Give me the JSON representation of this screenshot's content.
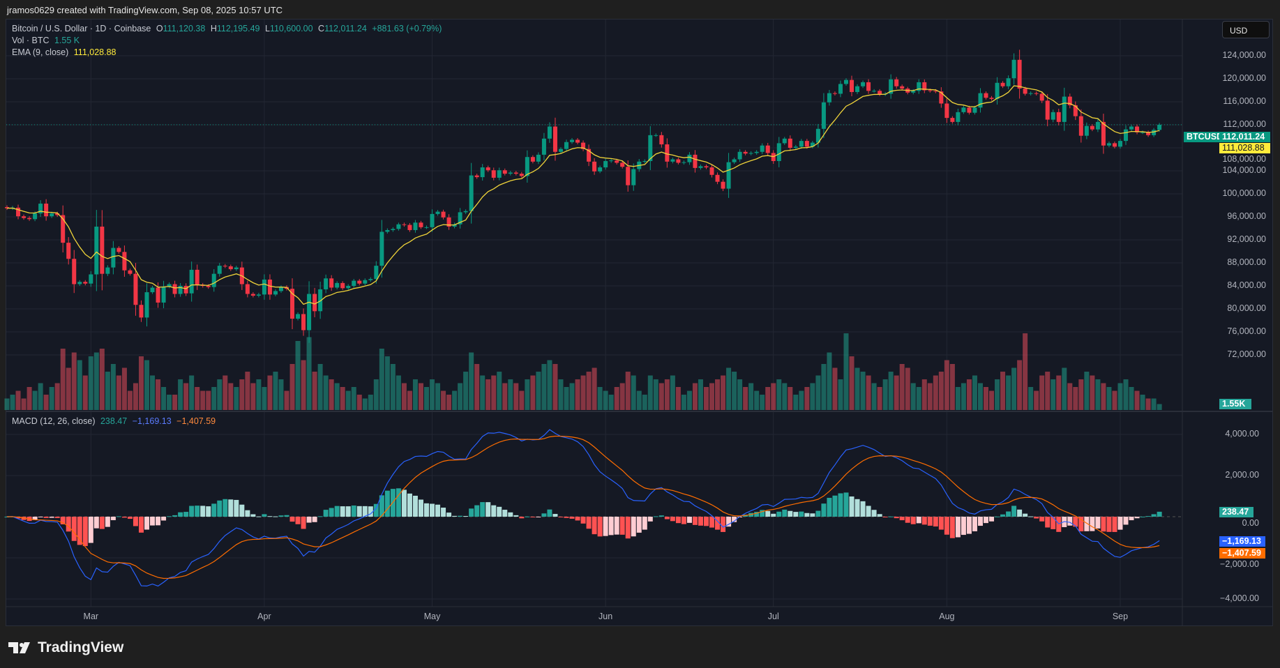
{
  "credit": "jramos0629 created with TradingView.com, Sep 08, 2025 10:57 UTC",
  "legend": {
    "symbol": "Bitcoin / U.S. Dollar · 1D · Coinbase",
    "open_label": "O",
    "open": "111,120.38",
    "high_label": "H",
    "high": "112,195.49",
    "low_label": "L",
    "low": "110,600.00",
    "close_label": "C",
    "close": "112,011.24",
    "change": "+881.63 (+0.79%)",
    "vol_label": "Vol · BTC",
    "vol": "1.55 K",
    "ema_label": "EMA (9, close)",
    "ema": "111,028.88",
    "macd_label": "MACD (12, 26, close)",
    "macd_hist": "238.47",
    "macd_line": "−1,169.13",
    "macd_signal": "−1,407.59"
  },
  "currency_button": "USD",
  "price_axis": [
    "124,000.00",
    "120,000.00",
    "116,000.00",
    "112,000.00",
    "108,000.00",
    "104,000.00",
    "100,000.00",
    "96,000.00",
    "92,000.00",
    "88,000.00",
    "84,000.00",
    "80,000.00",
    "76,000.00",
    "72,000.00"
  ],
  "macd_axis": [
    "4,000.00",
    "2,000.00",
    "0.00",
    "−2,000.00",
    "−4,000.00"
  ],
  "tags": {
    "symbol": "BTCUSD",
    "price": "112,011.24",
    "ema": "111,028.88",
    "volume": "1.55K",
    "hist": "238.47",
    "macd": "−1,169.13",
    "signal": "−1,407.59"
  },
  "time_axis": [
    "Mar",
    "Apr",
    "May",
    "Jun",
    "Jul",
    "Aug",
    "Sep"
  ],
  "brand": "TradingView",
  "colors": {
    "up": "#089981",
    "down": "#f23645",
    "ema": "#f0d43a",
    "macd": "#2962ff",
    "signal": "#ff6d00",
    "bg": "#151924"
  },
  "chart_data": {
    "type": "candlestick",
    "start_date": "2025-02-14",
    "end_date": "2025-09-08",
    "price_range": [
      70000,
      126000
    ],
    "macd_range": [
      -4800,
      4800
    ],
    "indicators": [
      "Volume",
      "EMA 9",
      "MACD 12 26 9"
    ],
    "close": [
      97500,
      97600,
      96100,
      95800,
      95600,
      96600,
      98300,
      96100,
      96600,
      96300,
      91500,
      88700,
      84300,
      84700,
      84400,
      86000,
      94300,
      86100,
      87200,
      90600,
      89900,
      86700,
      86100,
      80700,
      78500,
      82900,
      83700,
      81100,
      83900,
      84300,
      82600,
      84000,
      82700,
      86800,
      84200,
      84000,
      83800,
      86100,
      87500,
      87400,
      86900,
      87200,
      84300,
      82600,
      82300,
      82500,
      85100,
      82500,
      83100,
      83800,
      83500,
      78300,
      79100,
      76300,
      82600,
      79600,
      83400,
      85300,
      83700,
      84500,
      83600,
      84000,
      84900,
      84400,
      85000,
      85200,
      87500,
      93400,
      93700,
      93900,
      94700,
      94600,
      93700,
      95000,
      94200,
      94200,
      96500,
      96900,
      95900,
      94300,
      94700,
      96800,
      97000,
      103200,
      102900,
      104600,
      104100,
      102800,
      104100,
      103500,
      103700,
      103500,
      103100,
      106400,
      105600,
      106800,
      109600,
      111700,
      107300,
      107800,
      109000,
      109400,
      108900,
      107800,
      105600,
      103900,
      104600,
      105700,
      105800,
      105400,
      104700,
      101500,
      104300,
      105600,
      105700,
      110200,
      110200,
      108600,
      105600,
      106000,
      105400,
      105500,
      106800,
      104500,
      104800,
      104600,
      103300,
      102100,
      100900,
      105500,
      106000,
      107300,
      107000,
      107100,
      107300,
      108400,
      107100,
      105700,
      108800,
      109600,
      108000,
      108200,
      109200,
      108200,
      108900,
      111300,
      115900,
      117500,
      117400,
      119100,
      119800,
      117700,
      118700,
      119400,
      117900,
      117900,
      117300,
      117400,
      119900,
      118700,
      118300,
      117600,
      117900,
      119400,
      118000,
      117900,
      117800,
      115700,
      113200,
      112500,
      114200,
      115000,
      114100,
      115000,
      117500,
      116700,
      116500,
      119300,
      118700,
      120100,
      123300,
      118300,
      117400,
      117500,
      117400,
      116200,
      112900,
      114200,
      112500,
      116900,
      115400,
      113500,
      110100,
      111800,
      111200,
      112500,
      108400,
      108800,
      108200,
      109200,
      111200,
      111700,
      110700,
      110700,
      110200,
      111120.38,
      112011.24
    ],
    "volume_k": [
      3,
      4,
      5,
      3,
      6,
      5,
      7,
      4,
      6,
      7,
      16,
      11,
      15,
      13,
      9,
      14,
      15,
      16,
      10,
      12,
      9,
      11,
      5,
      7,
      14,
      13,
      9,
      8,
      6,
      4,
      4,
      8,
      7,
      9,
      6,
      5,
      5,
      6,
      8,
      9,
      7,
      6,
      8,
      10,
      7,
      8,
      6,
      9,
      10,
      8,
      5,
      12,
      18,
      13,
      19,
      10,
      12,
      9,
      8,
      7,
      6,
      5,
      6,
      4,
      3,
      4,
      8,
      16,
      14,
      12,
      9,
      7,
      5,
      8,
      7,
      6,
      8,
      7,
      5,
      4,
      5,
      7,
      10,
      15,
      12,
      9,
      8,
      9,
      10,
      7,
      8,
      7,
      5,
      8,
      9,
      10,
      12,
      13,
      12,
      8,
      6,
      7,
      8,
      9,
      10,
      11,
      6,
      5,
      4,
      6,
      7,
      10,
      9,
      5,
      4,
      9,
      8,
      7,
      8,
      9,
      6,
      4,
      5,
      7,
      8,
      6,
      7,
      8,
      9,
      11,
      10,
      8,
      6,
      7,
      5,
      4,
      6,
      7,
      8,
      7,
      6,
      4,
      5,
      6,
      7,
      9,
      12,
      15,
      11,
      8,
      20,
      14,
      11,
      10,
      9,
      7,
      6,
      8,
      10,
      9,
      12,
      11,
      7,
      6,
      8,
      7,
      9,
      10,
      13,
      12,
      6,
      7,
      8,
      9,
      7,
      6,
      5,
      8,
      10,
      9,
      11,
      13,
      20,
      6,
      5,
      9,
      10,
      8,
      9,
      11,
      7,
      6,
      8,
      10,
      9,
      8,
      7,
      6,
      5,
      7,
      8,
      6,
      5,
      4,
      3,
      3,
      1.55
    ]
  }
}
